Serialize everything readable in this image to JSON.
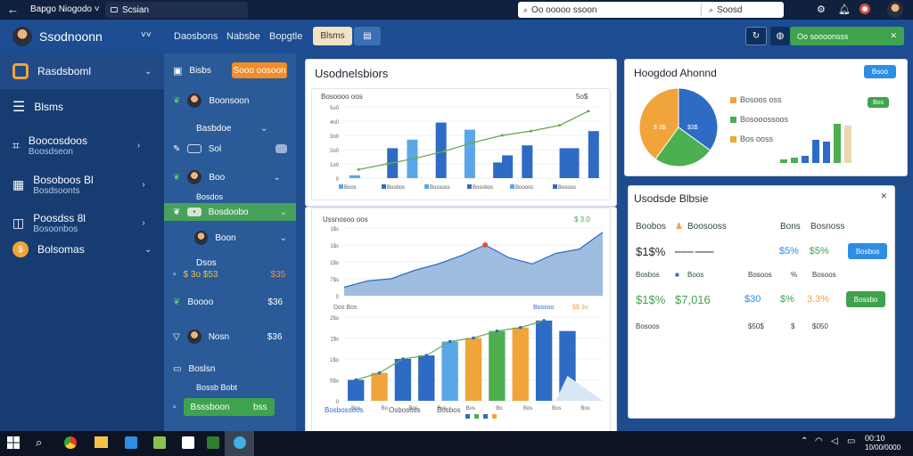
{
  "titlebar": {
    "back_glyph": "←",
    "app_name": "Bapgo Niogodo ˅",
    "tab_label": "Scsian",
    "search_value": "Oo ooooo ssoon",
    "search2_value": "Soosd"
  },
  "topbar": {
    "title": "Ssodnoonn",
    "chevron": "˅˅",
    "tabs": [
      "Daosbons",
      "Nabsbe",
      "Bopgtle"
    ],
    "active_tab": "Blsms",
    "action_label": "Oo soooonsss",
    "action_close": "✕"
  },
  "sidebar": {
    "items": [
      {
        "label": "Rasdsboml",
        "sub": ""
      },
      {
        "label": "Blsms",
        "sub": ""
      },
      {
        "label": "Boocosdoos",
        "sub": "Boosdseon"
      },
      {
        "label": "Bosoboos Bl",
        "sub": "Bosdsoonts"
      },
      {
        "label": "Poosdss 8l",
        "sub": "Bosoonbos"
      },
      {
        "label": "Bolsomas",
        "sub": ""
      }
    ]
  },
  "midpanel": {
    "top_button": "Sooo oosoon",
    "rows": [
      {
        "label": "Bisbs",
        "value": ""
      },
      {
        "label": "Boonsoon",
        "value": ""
      },
      {
        "label": "Basbdoe",
        "value": ""
      },
      {
        "label": "Sol",
        "value": ""
      },
      {
        "label": "Boo",
        "value": ""
      },
      {
        "label": "Bosdos",
        "value": ""
      },
      {
        "label": "Bosdoobo",
        "value": ""
      },
      {
        "label": "Boon",
        "value": ""
      },
      {
        "label": "Dsos",
        "value": ""
      },
      {
        "label": "$ 3o $53",
        "value": "$35"
      },
      {
        "label": "Boooo",
        "value": "$36"
      },
      {
        "label": "Nosn",
        "value": "$36"
      },
      {
        "label": "Boslsn",
        "value": ""
      },
      {
        "label": "Bossb Bobt",
        "value": ""
      }
    ],
    "bottom_button": "Bsssboon",
    "bottom_button_right": "bss"
  },
  "card_a": {
    "title": "Usodnelsbiors",
    "chart_title": "Bosoooo oos",
    "chart_note": "5o$",
    "legend": [
      "Boos",
      "Bosbos",
      "Bossoss",
      "Bossbos",
      "Boooss",
      "Bosoos"
    ],
    "y_ticks": [
      "5o0",
      "4o0",
      "3o0",
      "2o0",
      "1o0",
      "0"
    ]
  },
  "card_b": {
    "title": "Ussnosoo oos",
    "value_chip": "$ 3.0",
    "y_ticks": [
      "1$s",
      "1$s",
      "1$o",
      "7$s",
      "0"
    ],
    "legend_sub": [
      "Dos Bos",
      "Bossoo"
    ],
    "legend_sub_values": [
      "$$ 3o"
    ],
    "y_ticks2": [
      "2$o",
      "1$s",
      "1$o",
      "5$o",
      "0"
    ],
    "x_ticks": [
      "Bos",
      "Bo",
      "Bos",
      "Bos",
      "Bos",
      "Bo",
      "Bos",
      "Bos",
      "Bos"
    ],
    "footer": [
      "Bosbossoos",
      "Osbososs",
      "Bosbos"
    ]
  },
  "card_c": {
    "title": "Hoogdod Ahonnd",
    "button": "Bsoo",
    "pie_labels": [
      "$ 3$",
      "$3$"
    ],
    "legend": [
      {
        "label": "Bosoos oss",
        "value": ""
      },
      {
        "label": "Bosooossoos",
        "value": ""
      },
      {
        "label": "Bos ooss",
        "value": ""
      }
    ],
    "badge": "Bos"
  },
  "card_d": {
    "title": "Usodsde Blbsie",
    "close": "✕",
    "headers": [
      "Boobos",
      "Boosooss",
      "Bons",
      "Bosnoss"
    ],
    "row1": [
      "$1$%",
      "",
      "$5%",
      "$5%"
    ],
    "row1_button": "Bosbos",
    "row2_headers": [
      "Bosbos",
      "Boos",
      "Bosoos",
      "%",
      "Bosoos"
    ],
    "row2": [
      "$1$%",
      "$7,016",
      "$30",
      "$%",
      "3.3%"
    ],
    "row2_button": "Bossbo",
    "row3": [
      "Bosoos",
      "$50$",
      "$",
      "$050"
    ]
  },
  "taskbar": {
    "time": "00:10",
    "date": "10/00/0000"
  },
  "colors": {
    "blue": "#2e6bc4",
    "light_blue": "#5aa7e8",
    "orange": "#f0a43a",
    "green": "#4caf50",
    "beige": "#e8d8b0"
  },
  "chart_data": [
    {
      "type": "bar",
      "categories": [
        "1",
        "2",
        "3",
        "4",
        "5",
        "6",
        "7",
        "8",
        "9"
      ],
      "series": [
        {
          "name": "Boos",
          "values": [
            20,
            0,
            270,
            390,
            340,
            110,
            230,
            0,
            0
          ]
        },
        {
          "name": "Bosbos",
          "values": [
            0,
            210,
            0,
            0,
            0,
            160,
            0,
            210,
            330
          ]
        },
        {
          "name": "Bossoss",
          "values": [
            0,
            0,
            0,
            0,
            0,
            0,
            0,
            210,
            0
          ]
        }
      ],
      "line": [
        60,
        100,
        140,
        190,
        250,
        300,
        330,
        370,
        470
      ],
      "ylim": [
        0,
        500
      ]
    },
    {
      "type": "area",
      "x": [
        1,
        2,
        3,
        4,
        5,
        6,
        7,
        8,
        9,
        10,
        11,
        12
      ],
      "values": [
        20,
        35,
        40,
        60,
        75,
        95,
        120,
        90,
        75,
        100,
        110,
        150
      ],
      "ylim": [
        0,
        160
      ]
    },
    {
      "type": "bar",
      "categories": [
        "1",
        "2",
        "3",
        "4",
        "5",
        "6",
        "7",
        "8",
        "9",
        "10",
        "11"
      ],
      "values": [
        60,
        80,
        120,
        130,
        170,
        180,
        200,
        210,
        230,
        200,
        0
      ],
      "ylim": [
        0,
        240
      ]
    },
    {
      "type": "pie",
      "values": [
        35,
        25,
        40
      ],
      "colors": [
        "#2e6bc4",
        "#4caf50",
        "#f0a43a"
      ]
    }
  ]
}
